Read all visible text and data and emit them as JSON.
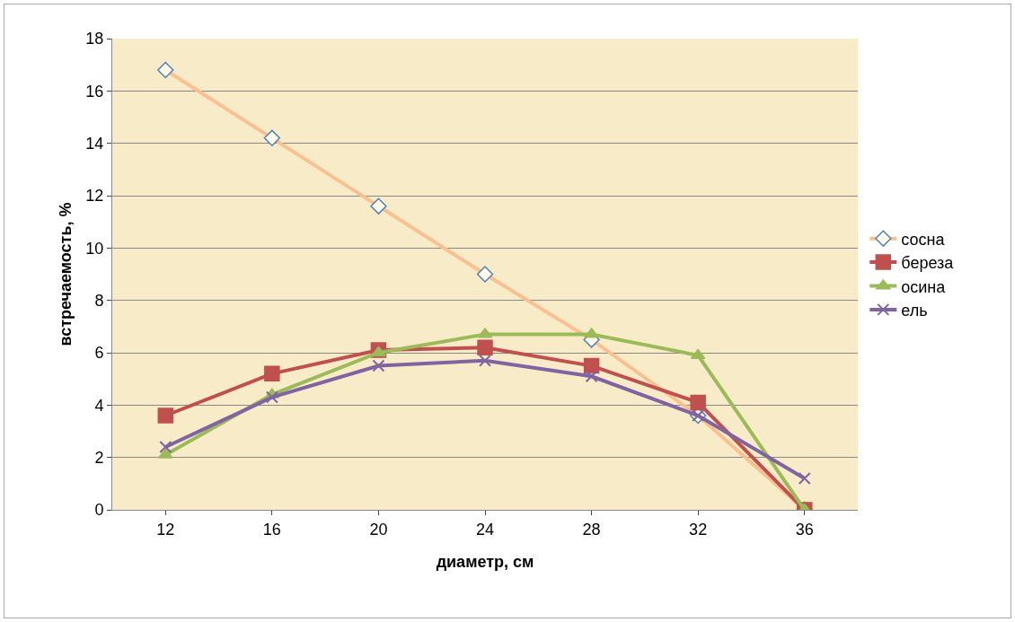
{
  "chart_data": {
    "type": "line",
    "xlabel": "диаметр, см",
    "ylabel": "встречаемость, %",
    "categories": [
      "12",
      "16",
      "20",
      "24",
      "28",
      "32",
      "36"
    ],
    "series": [
      {
        "name": "сосна",
        "color": "#fac090",
        "marker": "diamond",
        "values": [
          16.8,
          14.2,
          11.6,
          9.0,
          6.5,
          3.6,
          0
        ]
      },
      {
        "name": "береза",
        "color": "#c0504d",
        "marker": "square",
        "values": [
          3.6,
          5.2,
          6.1,
          6.2,
          5.5,
          4.1,
          0
        ]
      },
      {
        "name": "осина",
        "color": "#9bbb59",
        "marker": "triangle",
        "values": [
          2.1,
          4.4,
          6.0,
          6.7,
          6.7,
          5.9,
          0
        ]
      },
      {
        "name": "ель",
        "color": "#8064a2",
        "marker": "cross",
        "values": [
          2.4,
          4.3,
          5.5,
          5.7,
          5.1,
          3.6,
          1.2
        ]
      }
    ],
    "ylim": [
      0,
      18
    ],
    "yticks": [
      0,
      2,
      4,
      6,
      8,
      10,
      12,
      14,
      16,
      18
    ],
    "grid": "y",
    "legend": "right"
  }
}
